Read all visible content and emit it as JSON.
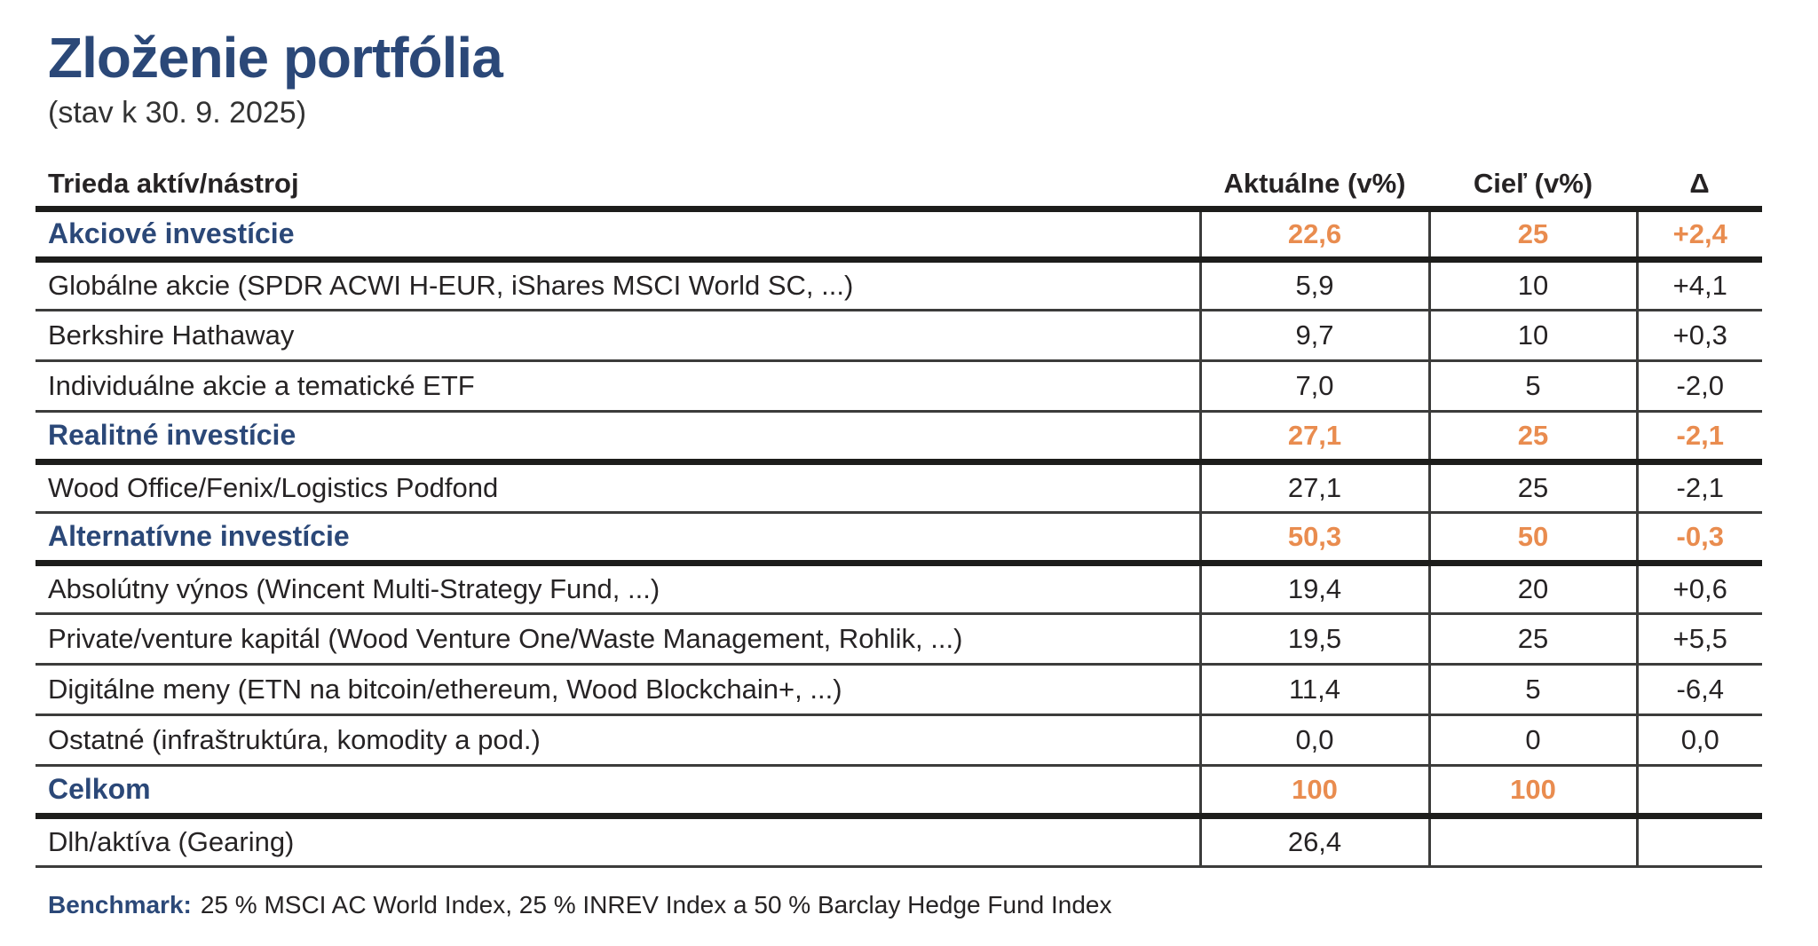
{
  "page": {
    "title": "Zloženie portfólia",
    "subtitle": "(stav k 30. 9. 2025)"
  },
  "colors": {
    "navy": "#2B4878",
    "orange": "#E98C4F",
    "text": "#262324"
  },
  "table": {
    "columns": [
      "Trieda aktív/nástroj",
      "Aktuálne (v%)",
      "Cieľ (v%)",
      "Δ"
    ],
    "rows": [
      {
        "type": "section",
        "name": "Akciové investície",
        "aktualne": "22,6",
        "ciel": "25",
        "delta": "+2,4"
      },
      {
        "type": "item",
        "name": "Globálne akcie (SPDR ACWI H-EUR, iShares MSCI World SC, ...)",
        "aktualne": "5,9",
        "ciel": "10",
        "delta": "+4,1"
      },
      {
        "type": "item",
        "name": "Berkshire Hathaway",
        "aktualne": "9,7",
        "ciel": "10",
        "delta": "+0,3"
      },
      {
        "type": "item",
        "name": "Individuálne akcie a tematické ETF",
        "aktualne": "7,0",
        "ciel": "5",
        "delta": "-2,0"
      },
      {
        "type": "section",
        "name": "Realitné investície",
        "aktualne": "27,1",
        "ciel": "25",
        "delta": "-2,1"
      },
      {
        "type": "item",
        "name": "Wood Office/Fenix/Logistics Podfond",
        "aktualne": "27,1",
        "ciel": "25",
        "delta": "-2,1"
      },
      {
        "type": "section",
        "name": "Alternatívne investície",
        "aktualne": "50,3",
        "ciel": "50",
        "delta": "-0,3"
      },
      {
        "type": "item",
        "name": "Absolútny výnos (Wincent Multi-Strategy Fund, ...)",
        "aktualne": "19,4",
        "ciel": "20",
        "delta": "+0,6"
      },
      {
        "type": "item",
        "name": "Private/venture kapitál (Wood Venture One/Waste Management, Rohlik, ...)",
        "aktualne": "19,5",
        "ciel": "25",
        "delta": "+5,5"
      },
      {
        "type": "item",
        "name": "Digitálne meny (ETN na bitcoin/ethereum, Wood Blockchain+, ...)",
        "aktualne": "11,4",
        "ciel": "5",
        "delta": "-6,4"
      },
      {
        "type": "item",
        "name": "Ostatné (infraštruktúra, komodity a pod.)",
        "aktualne": "0,0",
        "ciel": "0",
        "delta": "0,0"
      },
      {
        "type": "section",
        "name": "Celkom",
        "aktualne": "100",
        "ciel": "100",
        "delta": ""
      },
      {
        "type": "item",
        "name": "Dlh/aktíva (Gearing)",
        "aktualne": "26,4",
        "ciel": "",
        "delta": ""
      }
    ]
  },
  "footer": {
    "benchmark_label": "Benchmark:",
    "benchmark_text": "25 % MSCI AC World Index, 25 % INREV Index a 50 % Barclay Hedge Fund Index"
  }
}
